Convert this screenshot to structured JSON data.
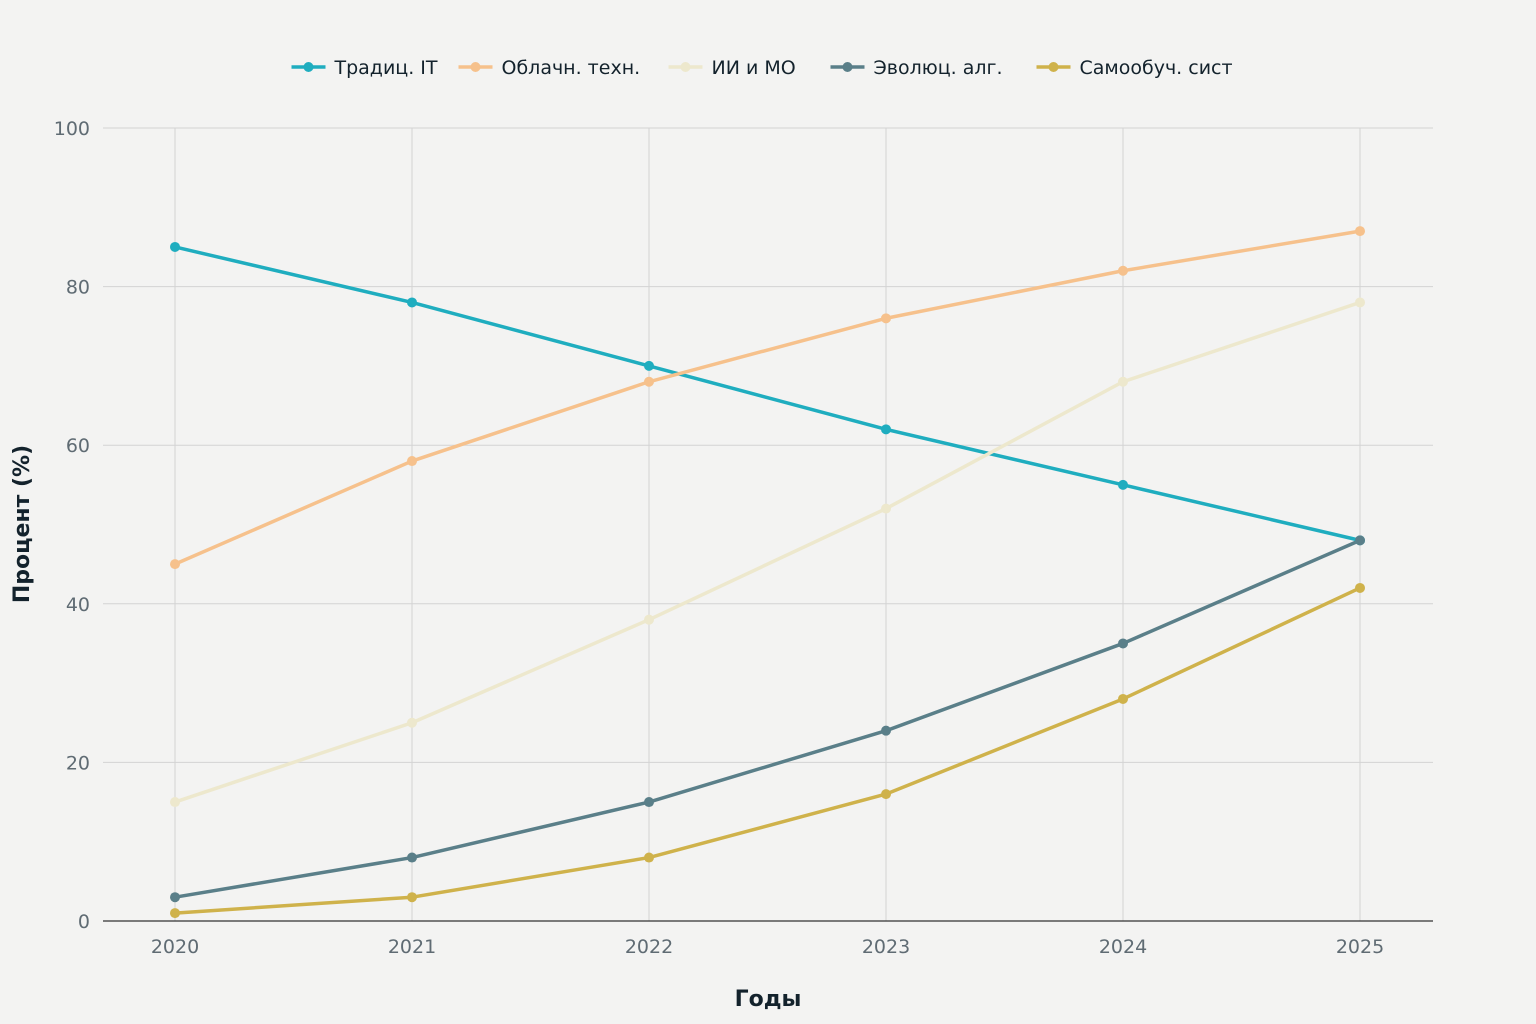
{
  "chart_data": {
    "type": "line",
    "title": "",
    "xlabel": "Годы",
    "ylabel": "Процент (%)",
    "x": [
      "2020",
      "2021",
      "2022",
      "2023",
      "2024",
      "2025"
    ],
    "ylim": [
      0,
      100
    ],
    "yticks": [
      "0",
      "20",
      "40",
      "60",
      "80",
      "100"
    ],
    "grid": true,
    "legend_position": "top-center",
    "series": [
      {
        "name": "Традиц. IT",
        "color": "#1fadbf",
        "values": [
          85,
          78,
          70,
          62,
          55,
          48
        ]
      },
      {
        "name": "Облачн. техн.",
        "color": "#f6c18c",
        "values": [
          45,
          58,
          68,
          76,
          82,
          87
        ]
      },
      {
        "name": "ИИ и МО",
        "color": "#ede8cd",
        "values": [
          15,
          25,
          38,
          52,
          68,
          78
        ]
      },
      {
        "name": "Эволюц. алг.",
        "color": "#5a7f89",
        "values": [
          3,
          8,
          15,
          24,
          35,
          48
        ]
      },
      {
        "name": "Самообуч. сист",
        "color": "#cfb24b",
        "values": [
          1,
          3,
          8,
          16,
          28,
          42
        ]
      }
    ]
  }
}
